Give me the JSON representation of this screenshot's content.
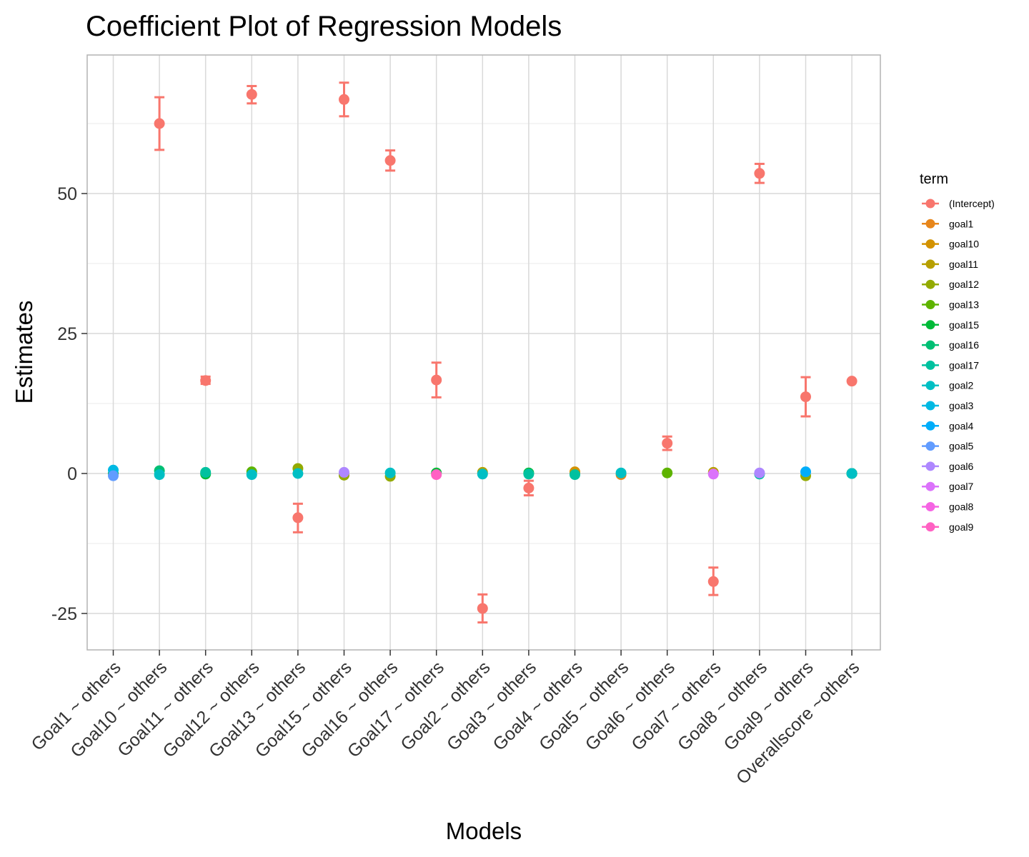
{
  "chart_data": {
    "type": "scatter",
    "title": "Coefficient Plot of Regression Models",
    "xlabel": "Models",
    "ylabel": "Estimates",
    "ylim": [
      -31.5,
      75
    ],
    "yticks": [
      -25,
      0,
      25,
      50
    ],
    "ytick_labels": [
      "-25",
      "0",
      "25",
      "50"
    ],
    "grid": true,
    "legend_title": "term",
    "legend_position": "right",
    "categories": [
      "Goal1 ~ others",
      "Goal10 ~ others",
      "Goal11 ~ others",
      "Goal12 ~ others",
      "Goal13 ~ others",
      "Goal15 ~ others",
      "Goal16 ~ others",
      "Goal17 ~ others",
      "Goal2 ~ others",
      "Goal3 ~ others",
      "Goal4 ~ others",
      "Goal5 ~ others",
      "Goal6 ~ others",
      "Goal7 ~ others",
      "Goal8 ~ others",
      "Goal9 ~ others",
      "Overallscore ~others"
    ],
    "series": [
      {
        "name": "(Intercept)",
        "color": "#F8766D",
        "values": [
          null,
          62.5,
          16.6,
          67.7,
          -7.9,
          66.8,
          55.9,
          16.7,
          -24.1,
          -2.6,
          null,
          null,
          5.4,
          -19.3,
          53.6,
          13.7,
          16.5
        ],
        "lower": [
          null,
          57.8,
          16.0,
          66.1,
          -10.5,
          63.8,
          54.1,
          13.6,
          -26.6,
          -3.9,
          null,
          null,
          4.2,
          -21.7,
          51.9,
          10.2,
          16.5
        ],
        "upper": [
          null,
          67.2,
          17.3,
          69.2,
          -5.4,
          69.8,
          57.7,
          19.8,
          -21.6,
          -1.3,
          null,
          null,
          6.6,
          -16.8,
          55.3,
          17.2,
          16.5
        ]
      },
      {
        "name": "goal1",
        "color": "#E7861B",
        "values": [
          null,
          null,
          null,
          null,
          null,
          null,
          null,
          null,
          null,
          null,
          0.1,
          -0.2,
          null,
          null,
          null,
          null,
          0.0
        ]
      },
      {
        "name": "goal10",
        "color": "#D39200",
        "values": [
          null,
          null,
          null,
          null,
          null,
          null,
          null,
          null,
          null,
          null,
          0.3,
          null,
          null,
          null,
          null,
          null,
          0.0
        ]
      },
      {
        "name": "goal11",
        "color": "#B79F00",
        "values": [
          null,
          null,
          null,
          null,
          null,
          null,
          null,
          null,
          0.2,
          null,
          null,
          null,
          null,
          0.2,
          null,
          null,
          0.0
        ]
      },
      {
        "name": "goal12",
        "color": "#93AA00",
        "values": [
          null,
          null,
          null,
          null,
          0.9,
          -0.3,
          -0.5,
          null,
          null,
          null,
          null,
          null,
          null,
          null,
          null,
          -0.4,
          0.0
        ]
      },
      {
        "name": "goal13",
        "color": "#5EB300",
        "values": [
          null,
          null,
          null,
          0.3,
          null,
          null,
          null,
          null,
          null,
          null,
          null,
          null,
          0.1,
          null,
          null,
          null,
          0.0
        ]
      },
      {
        "name": "goal15",
        "color": "#00BA38",
        "values": [
          0.0,
          null,
          -0.1,
          null,
          null,
          null,
          null,
          0.1,
          null,
          0.1,
          null,
          null,
          null,
          null,
          null,
          null,
          0.0
        ]
      },
      {
        "name": "goal16",
        "color": "#00BF74",
        "values": [
          null,
          0.5,
          null,
          null,
          null,
          null,
          null,
          null,
          null,
          null,
          null,
          null,
          null,
          null,
          null,
          null,
          0.0
        ]
      },
      {
        "name": "goal17",
        "color": "#00C19F",
        "values": [
          null,
          null,
          0.2,
          null,
          null,
          null,
          null,
          null,
          null,
          -0.1,
          -0.2,
          null,
          null,
          null,
          -0.1,
          null,
          0.0
        ]
      },
      {
        "name": "goal2",
        "color": "#00BFC4",
        "values": [
          null,
          -0.2,
          null,
          -0.2,
          0.0,
          null,
          0.1,
          null,
          -0.1,
          null,
          null,
          0.1,
          null,
          null,
          null,
          null,
          0.0
        ]
      },
      {
        "name": "goal3",
        "color": "#00B9E3",
        "values": [
          0.6,
          null,
          null,
          null,
          null,
          null,
          null,
          null,
          null,
          null,
          null,
          null,
          null,
          null,
          null,
          null,
          null
        ]
      },
      {
        "name": "goal4",
        "color": "#00ADFA",
        "values": [
          null,
          null,
          null,
          null,
          null,
          null,
          null,
          null,
          null,
          null,
          null,
          null,
          null,
          null,
          null,
          0.3,
          null
        ]
      },
      {
        "name": "goal5",
        "color": "#619CFF",
        "values": [
          -0.4,
          null,
          null,
          null,
          null,
          null,
          null,
          null,
          null,
          null,
          null,
          null,
          null,
          null,
          null,
          null,
          null
        ]
      },
      {
        "name": "goal6",
        "color": "#AE87FF",
        "values": [
          null,
          null,
          null,
          null,
          null,
          0.2,
          null,
          null,
          null,
          null,
          null,
          null,
          null,
          null,
          0.1,
          null,
          null
        ]
      },
      {
        "name": "goal7",
        "color": "#DB72FB",
        "values": [
          null,
          null,
          null,
          null,
          null,
          null,
          null,
          null,
          null,
          null,
          null,
          null,
          null,
          -0.1,
          null,
          null,
          null
        ]
      },
      {
        "name": "goal8",
        "color": "#F564E3",
        "values": [
          null,
          null,
          null,
          null,
          null,
          null,
          null,
          null,
          null,
          null,
          null,
          null,
          null,
          null,
          null,
          null,
          null
        ]
      },
      {
        "name": "goal9",
        "color": "#FF61C3",
        "values": [
          null,
          null,
          null,
          null,
          null,
          null,
          null,
          -0.2,
          null,
          null,
          null,
          null,
          null,
          null,
          null,
          null,
          null
        ]
      }
    ]
  }
}
